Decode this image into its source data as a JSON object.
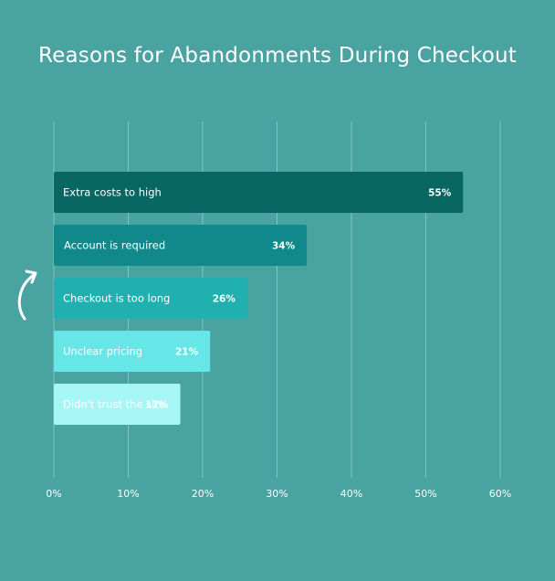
{
  "chart_data": {
    "type": "bar",
    "orientation": "horizontal",
    "title": "Reasons for Abandonments During Checkout",
    "categories": [
      "Extra costs to high",
      "Account is required",
      "Checkout is too long",
      "Unclear pricing",
      "Didn't trust the site"
    ],
    "values": [
      55,
      34,
      26,
      21,
      17
    ],
    "value_labels": [
      "55%",
      "34%",
      "26%",
      "21%",
      "17%"
    ],
    "bar_colors": [
      "#086663",
      "#11898a",
      "#20b0b0",
      "#67e6e8",
      "#a6f5f7"
    ],
    "xlim": [
      0,
      60
    ],
    "x_ticks": [
      "0%",
      "10%",
      "20%",
      "30%",
      "40%",
      "50%",
      "60%"
    ],
    "grid": true,
    "xlabel": "",
    "ylabel": ""
  },
  "colors": {
    "background": "#49a3a1",
    "gridline": "#7ec4c2",
    "text": "#ffffff"
  },
  "decoration": {
    "arrow_icon": "curved-arrow-icon"
  }
}
